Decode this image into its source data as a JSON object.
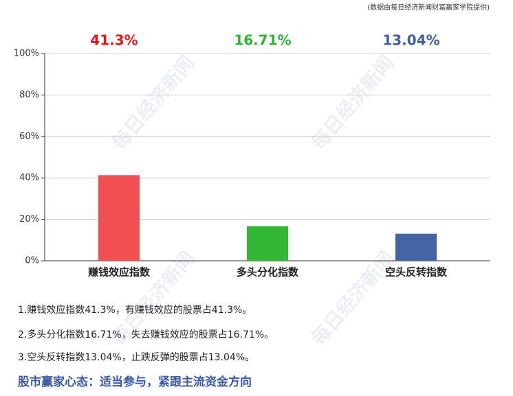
{
  "source": "(数据由每日经济新闻财富赢家学院提供)",
  "watermark": "每日经济新闻",
  "chart_data": {
    "type": "bar",
    "categories": [
      "赚钱效应指数",
      "多头分化指数",
      "空头反转指数"
    ],
    "values": [
      41.3,
      16.71,
      13.04
    ],
    "value_labels": [
      "41.3%",
      "16.71%",
      "13.04%"
    ],
    "colors": [
      "#f05050",
      "#33b833",
      "#4464a6"
    ],
    "label_colors": [
      "#e8141b",
      "#2fb52f",
      "#3f5fa3"
    ],
    "ylim": [
      0,
      100
    ],
    "yticks": [
      {
        "value": 0,
        "label": "0%"
      },
      {
        "value": 20,
        "label": "20%"
      },
      {
        "value": 40,
        "label": "40%"
      },
      {
        "value": 60,
        "label": "60%"
      },
      {
        "value": 80,
        "label": "80%"
      },
      {
        "value": 100,
        "label": "100%"
      }
    ],
    "grid": true
  },
  "notes": [
    "1.赚钱效应指数41.3%，有赚钱效应的股票占41.3%。",
    "2.多头分化指数16.71%，失去赚钱效应的股票占16.71%。",
    "3.空头反转指数13.04%，止跌反弹的股票占13.04%。"
  ],
  "footer": "股市赢家心态：适当参与，紧跟主流资金方向"
}
